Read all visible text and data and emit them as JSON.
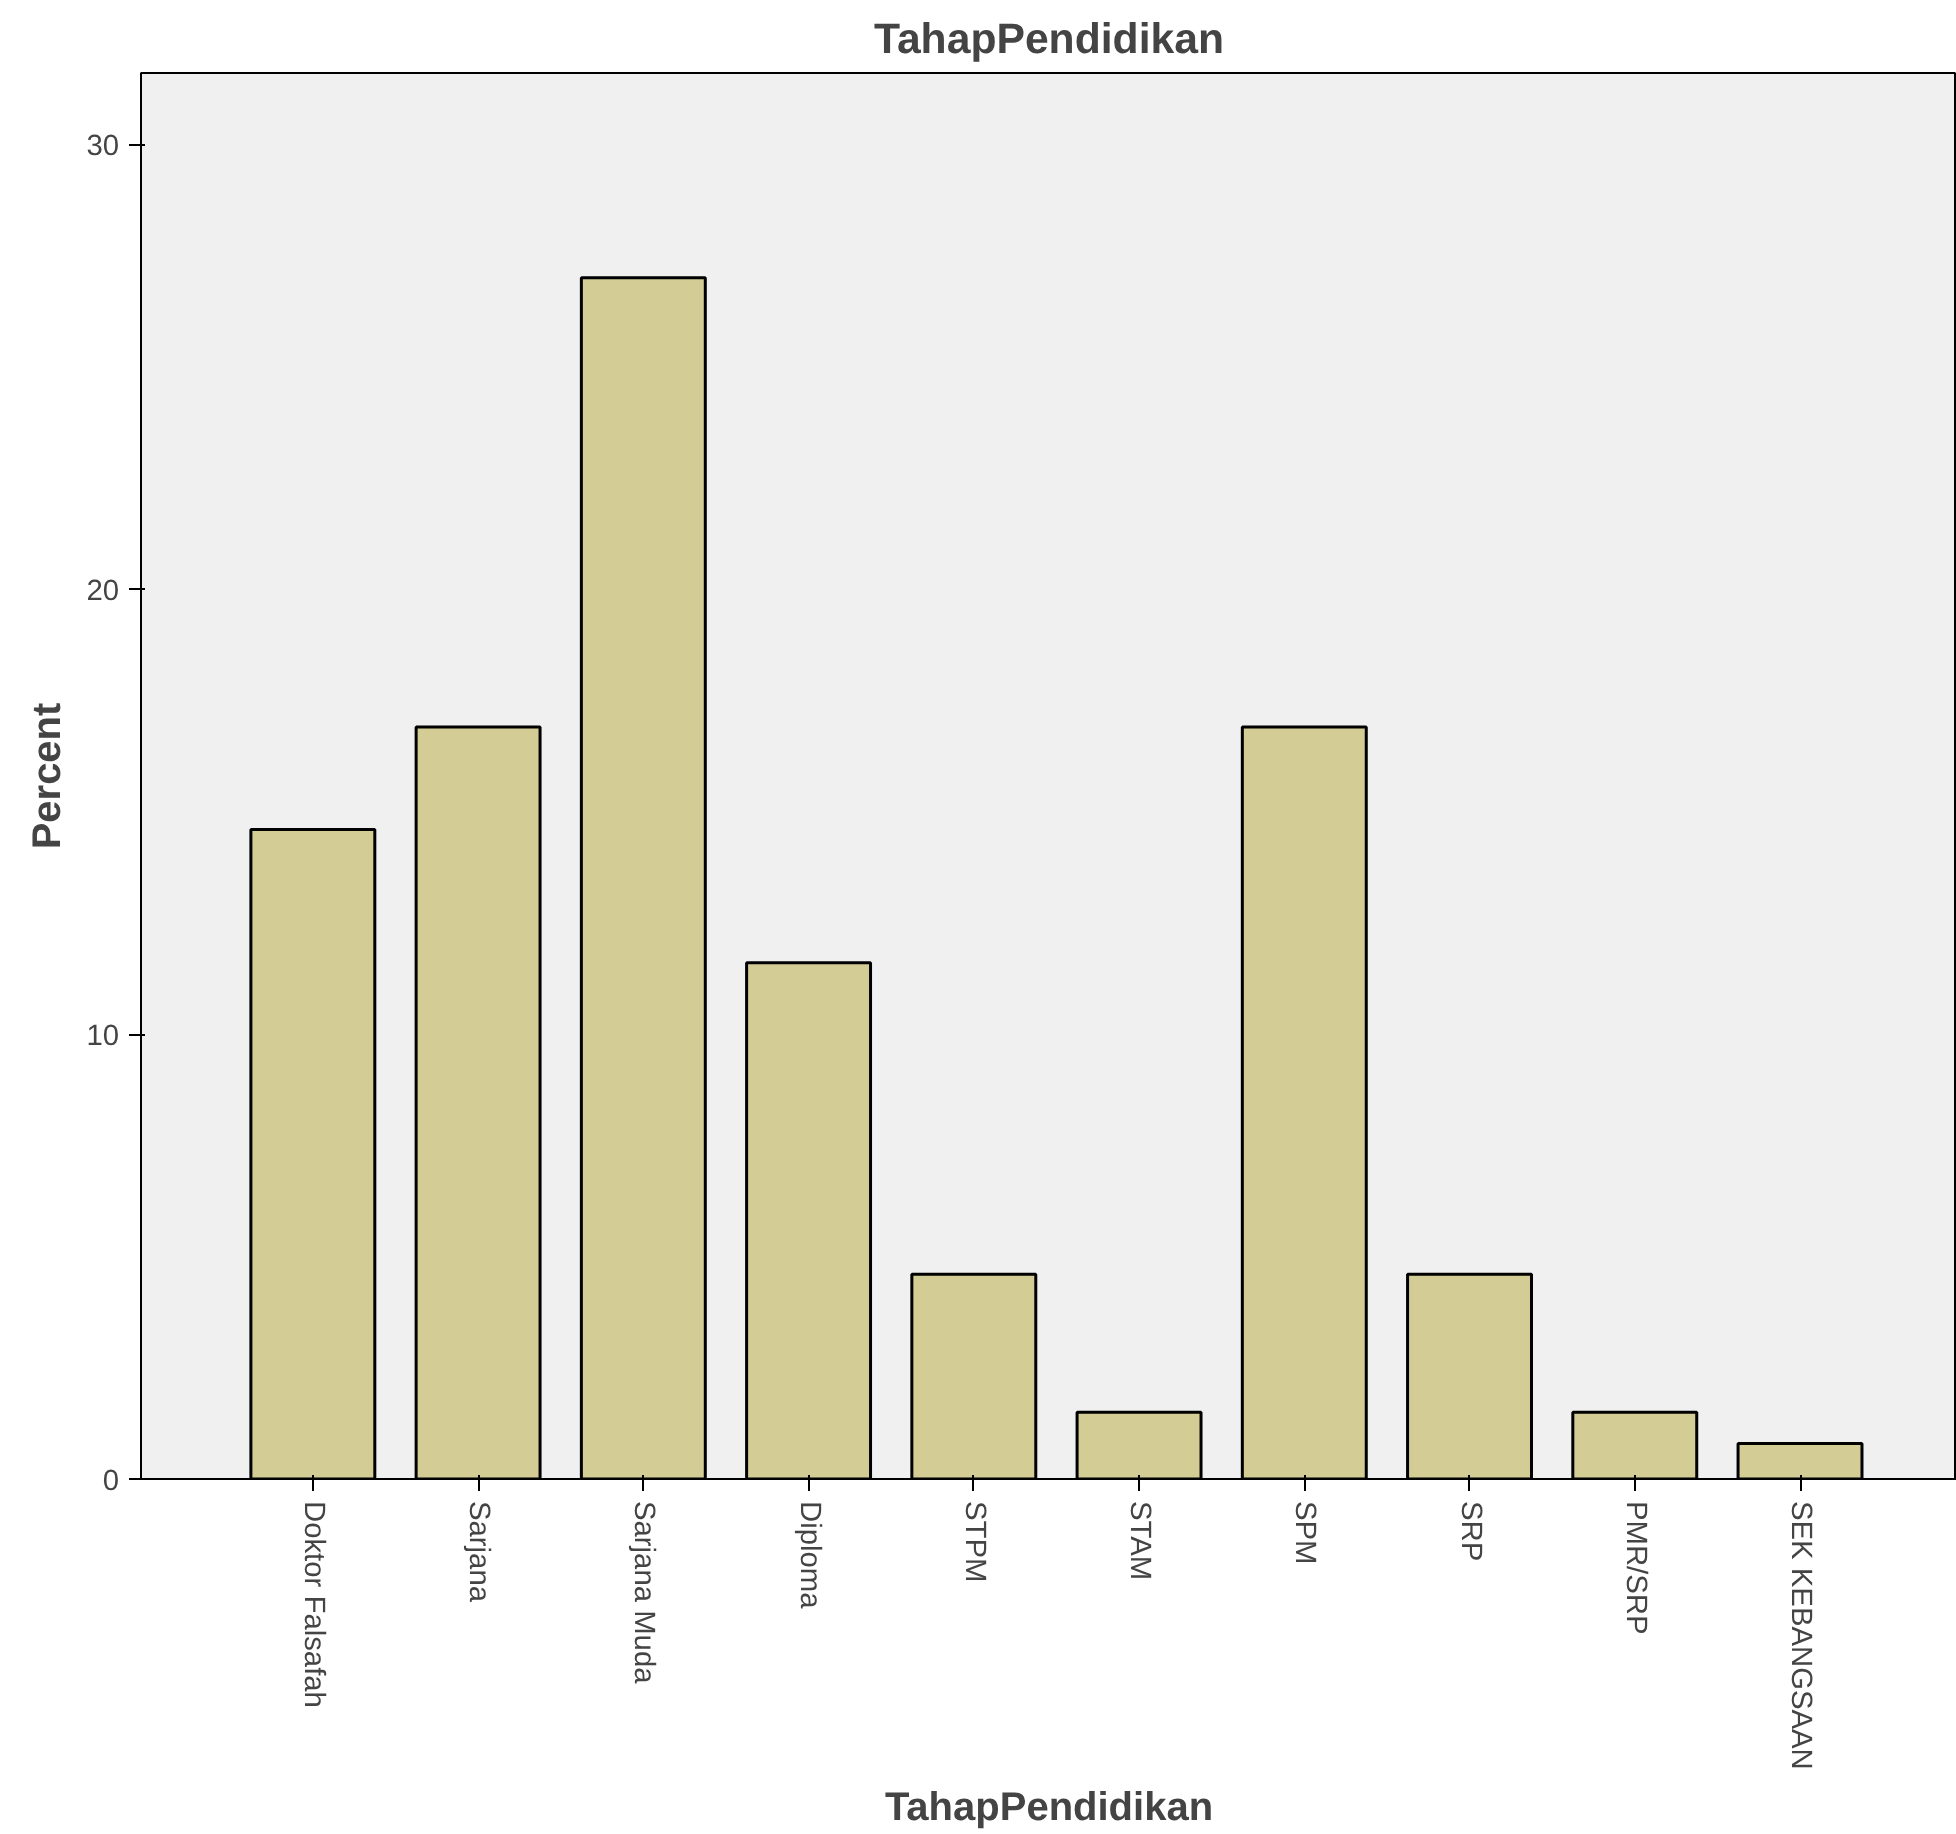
{
  "chart_data": {
    "type": "bar",
    "title": "TahapPendidikan",
    "xlabel": "TahapPendidikan",
    "ylabel": "Percent",
    "categories": [
      "Doktor Falsafah",
      "Sarjana",
      "Sarjana Muda",
      "Diploma",
      "STPM",
      "STAM",
      "SPM",
      "SRP",
      "PMR/SRP",
      "SEK KEBANGSAAN"
    ],
    "values": [
      14.6,
      16.9,
      27.0,
      11.6,
      4.6,
      1.5,
      16.9,
      4.6,
      1.5,
      0.8
    ],
    "color": "#d3cd95",
    "ylim": [
      0,
      31.6
    ],
    "yticks": [
      0,
      10,
      20,
      30
    ],
    "grid": false
  }
}
